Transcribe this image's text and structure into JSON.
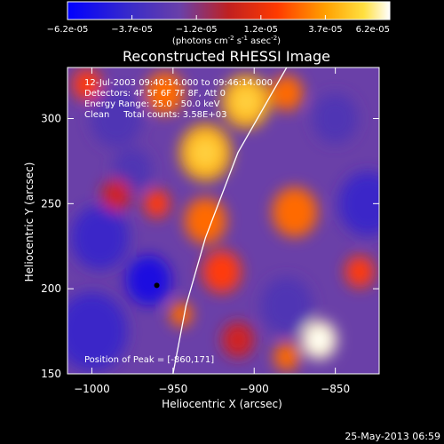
{
  "chart_data": {
    "type": "heatmap",
    "title": "Reconstructed RHESSI Image",
    "xlabel": "Heliocentric X (arcsec)",
    "ylabel": "Heliocentric Y (arcsec)",
    "xlim": [
      -1015,
      -823
    ],
    "ylim": [
      150,
      330
    ],
    "xticks": [
      -1000,
      -950,
      -900,
      -850
    ],
    "yticks": [
      150,
      200,
      250,
      300
    ],
    "colorbar": {
      "ticks": [
        "-6.2e-05",
        "-3.7e-05",
        "-1.2e-05",
        "1.2e-05",
        "3.7e-05",
        "6.2e-05"
      ],
      "unit_label": "(photons cm",
      "unit_parts": {
        "cm_exp": "-2",
        "s": " s",
        "s_exp": "-1",
        "asec": " asec",
        "asec_exp": "-2",
        "close": ")"
      }
    },
    "info_lines": [
      "12-Jul-2003 09:40:14.000 to 09:46:14.000",
      "Detectors: 4F 5F 6F 7F 8F, Att 0",
      "Energy Range: 25.0 - 50.0 keV",
      "Clean     Total counts: 3.58E+03"
    ],
    "peak_label": "Position of Peak = [-860,171]",
    "peak": {
      "x": -860,
      "y": 171
    },
    "marker": {
      "x": -960,
      "y": 202
    },
    "limb_curve": [
      [
        -880,
        330
      ],
      [
        -910,
        280
      ],
      [
        -930,
        230
      ],
      [
        -942,
        190
      ],
      [
        -950,
        150
      ]
    ],
    "blobs": [
      {
        "x": -1000,
        "y": 175,
        "r": 22,
        "v": -0.7
      },
      {
        "x": -995,
        "y": 230,
        "r": 18,
        "v": -0.6
      },
      {
        "x": -965,
        "y": 205,
        "r": 14,
        "v": -0.9
      },
      {
        "x": -985,
        "y": 300,
        "r": 16,
        "v": -0.5
      },
      {
        "x": -830,
        "y": 250,
        "r": 18,
        "v": -0.6
      },
      {
        "x": -880,
        "y": 190,
        "r": 16,
        "v": -0.5
      },
      {
        "x": -850,
        "y": 300,
        "r": 14,
        "v": -0.4
      },
      {
        "x": -975,
        "y": 270,
        "r": 12,
        "v": -0.3
      },
      {
        "x": -930,
        "y": 280,
        "r": 16,
        "v": 0.75
      },
      {
        "x": -905,
        "y": 310,
        "r": 15,
        "v": 0.7
      },
      {
        "x": -930,
        "y": 240,
        "r": 13,
        "v": 0.65
      },
      {
        "x": -955,
        "y": 315,
        "r": 12,
        "v": 0.55
      },
      {
        "x": -875,
        "y": 245,
        "r": 14,
        "v": 0.6
      },
      {
        "x": -880,
        "y": 315,
        "r": 10,
        "v": 0.55
      },
      {
        "x": -920,
        "y": 210,
        "r": 12,
        "v": 0.5
      },
      {
        "x": -860,
        "y": 170,
        "r": 11,
        "v": 1.0
      },
      {
        "x": -880,
        "y": 160,
        "r": 8,
        "v": 0.6
      },
      {
        "x": -945,
        "y": 185,
        "r": 7,
        "v": 0.6
      },
      {
        "x": -985,
        "y": 255,
        "r": 9,
        "v": 0.35
      },
      {
        "x": -1003,
        "y": 320,
        "r": 9,
        "v": 0.45
      },
      {
        "x": -835,
        "y": 210,
        "r": 9,
        "v": 0.45
      },
      {
        "x": -910,
        "y": 170,
        "r": 10,
        "v": 0.35
      },
      {
        "x": -960,
        "y": 250,
        "r": 8,
        "v": 0.4
      }
    ]
  },
  "footer": {
    "date": "25-May-2013 06:59"
  }
}
